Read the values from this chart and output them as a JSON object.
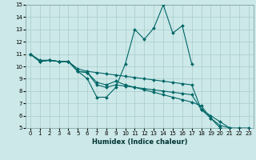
{
  "xlabel": "Humidex (Indice chaleur)",
  "xlim": [
    -0.5,
    23.5
  ],
  "ylim": [
    5,
    15
  ],
  "xticks": [
    0,
    1,
    2,
    3,
    4,
    5,
    6,
    7,
    8,
    9,
    10,
    11,
    12,
    13,
    14,
    15,
    16,
    17,
    18,
    19,
    20,
    21,
    22,
    23
  ],
  "yticks": [
    5,
    6,
    7,
    8,
    9,
    10,
    11,
    12,
    13,
    14,
    15
  ],
  "bg_color": "#cce8e8",
  "grid_color": "#aacccc",
  "line_color": "#006666",
  "lines": [
    [
      11.0,
      10.4,
      10.5,
      10.4,
      10.4,
      9.6,
      9.0,
      7.5,
      7.5,
      8.3,
      10.2,
      13.0,
      12.2,
      13.1,
      15.0,
      12.7,
      13.3,
      10.2,
      null,
      null,
      null,
      null,
      null,
      null
    ],
    [
      11.0,
      10.4,
      10.5,
      10.4,
      10.4,
      9.6,
      9.5,
      8.5,
      8.3,
      8.5,
      8.4,
      8.3,
      8.2,
      8.1,
      8.0,
      7.9,
      7.8,
      7.7,
      6.5,
      5.8,
      5.0,
      4.9,
      4.9,
      4.9
    ],
    [
      11.0,
      10.4,
      10.5,
      10.4,
      10.4,
      9.6,
      9.5,
      8.7,
      8.5,
      8.8,
      8.5,
      8.3,
      8.1,
      7.9,
      7.7,
      7.5,
      7.3,
      7.1,
      6.8,
      5.8,
      5.2,
      5.0,
      5.0,
      5.0
    ],
    [
      11.0,
      10.5,
      10.5,
      10.4,
      10.4,
      9.8,
      9.6,
      9.5,
      9.4,
      9.3,
      9.2,
      9.1,
      9.0,
      8.9,
      8.8,
      8.7,
      8.6,
      8.5,
      6.5,
      6.0,
      5.5,
      5.0,
      4.9,
      4.9
    ]
  ]
}
